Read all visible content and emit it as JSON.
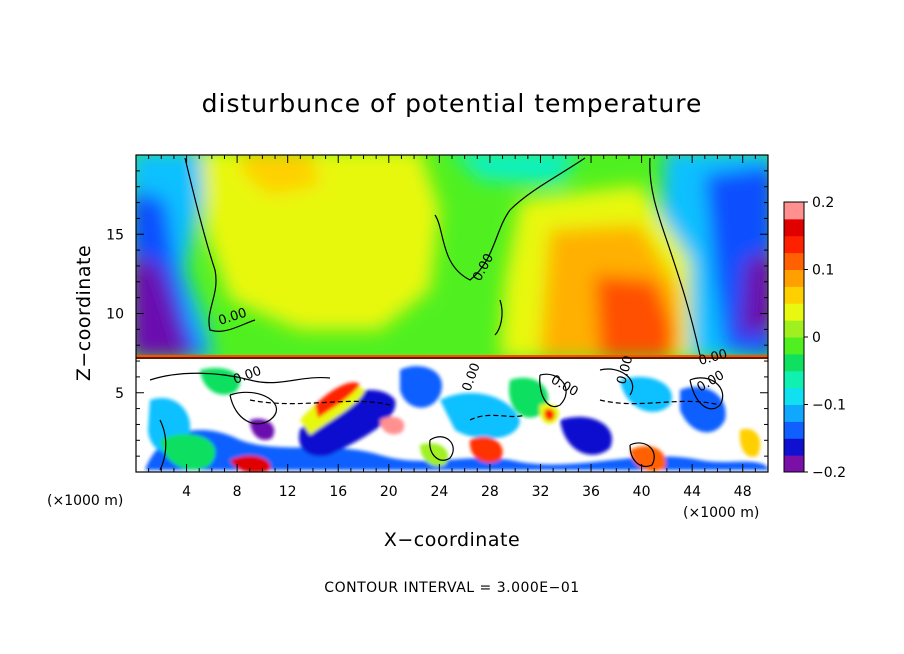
{
  "chart_data": {
    "type": "heatmap",
    "title": "disturbunce of potential temperature",
    "xlabel": "X−coordinate",
    "ylabel": "Z−coordinate",
    "x_unit_left": "(×1000 m)",
    "x_unit_right": "(×1000 m)",
    "xlim": [
      0,
      50
    ],
    "ylim": [
      0,
      20
    ],
    "x_ticks": [
      4,
      8,
      12,
      16,
      20,
      24,
      28,
      32,
      36,
      40,
      44,
      48
    ],
    "x_tick_labels": [
      "4",
      "8",
      "12",
      "16",
      "20",
      "24",
      "28",
      "32",
      "36",
      "40",
      "44",
      "48"
    ],
    "y_ticks": [
      5,
      10,
      15
    ],
    "y_tick_labels": [
      "5",
      "10",
      "15"
    ],
    "colorbar": {
      "range": [
        -0.2,
        0.2
      ],
      "ticks": [
        0.2,
        0.1,
        0,
        -0.1,
        -0.2
      ],
      "tick_labels": [
        "0.2",
        "0.1",
        "0",
        "−0.1",
        "−0.2"
      ],
      "colors": [
        "#7a10a8",
        "#1010d0",
        "#1060ff",
        "#10a8ff",
        "#10e0f0",
        "#10f0b0",
        "#10e060",
        "#50f020",
        "#a0f020",
        "#e8f810",
        "#ffd000",
        "#ffa000",
        "#ff6000",
        "#ff2000",
        "#e00000",
        "#ff9090"
      ]
    },
    "contour_labels": [
      "0.00",
      "0.00",
      "0.00",
      "0.00",
      "0.00",
      "0.00",
      "0.00",
      "0.00"
    ],
    "contour_interval_text": "CONTOUR INTERVAL = 3.000E−01"
  },
  "colors": {
    "background": "#ffffff",
    "contour": "#000000"
  }
}
